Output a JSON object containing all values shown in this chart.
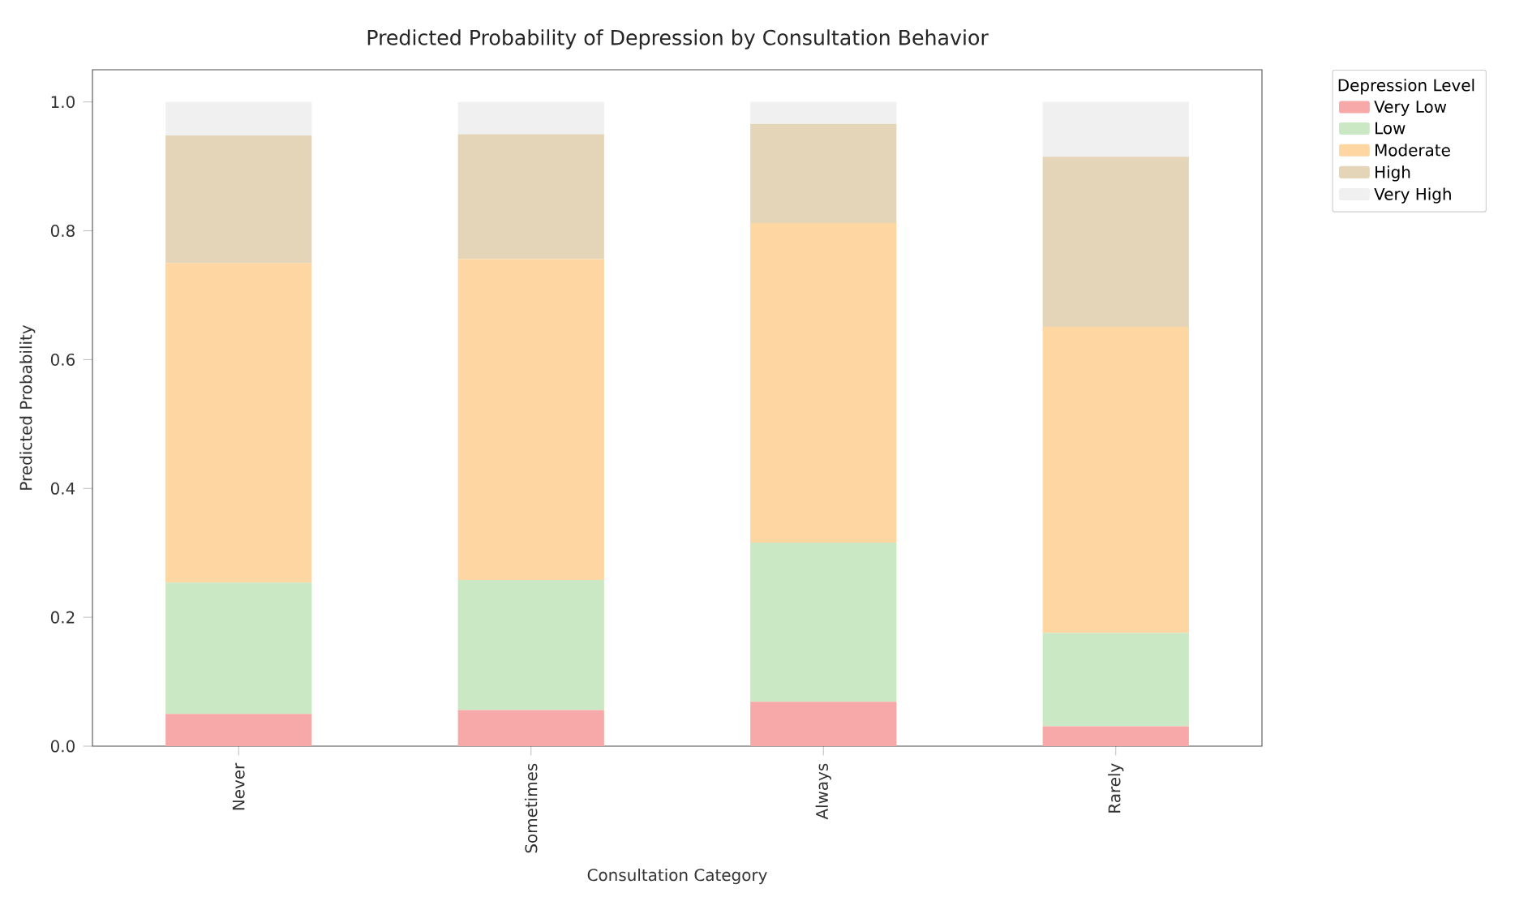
{
  "chart_data": {
    "type": "bar",
    "stacked": true,
    "title": "Predicted Probability of Depression by Consultation Behavior",
    "xlabel": "Consultation Category",
    "ylabel": "Predicted Probability",
    "legend_title": "Depression Level",
    "legend": "top right",
    "categories": [
      "Never",
      "Sometimes",
      "Always",
      "Rarely"
    ],
    "ylim": [
      0,
      1.05
    ],
    "yticks": [
      {
        "value": 0,
        "label": "0.0"
      },
      0.2,
      0.4,
      0.6,
      0.8,
      {
        "value": 1,
        "label": "1.0"
      }
    ],
    "series": [
      {
        "name": "Very Low",
        "color": "#f7a8a8",
        "values": [
          0.05,
          0.056,
          0.069,
          0.031
        ]
      },
      {
        "name": "Low",
        "color": "#cbe8c4",
        "values": [
          0.204,
          0.202,
          0.247,
          0.145
        ]
      },
      {
        "name": "Moderate",
        "color": "#fdd6a2",
        "values": [
          0.496,
          0.498,
          0.496,
          0.475
        ]
      },
      {
        "name": "High",
        "color": "#e4d5b8",
        "values": [
          0.198,
          0.194,
          0.154,
          0.264
        ]
      },
      {
        "name": "Very High",
        "color": "#f0f0f0",
        "values": [
          0.052,
          0.05,
          0.034,
          0.085
        ]
      }
    ]
  }
}
